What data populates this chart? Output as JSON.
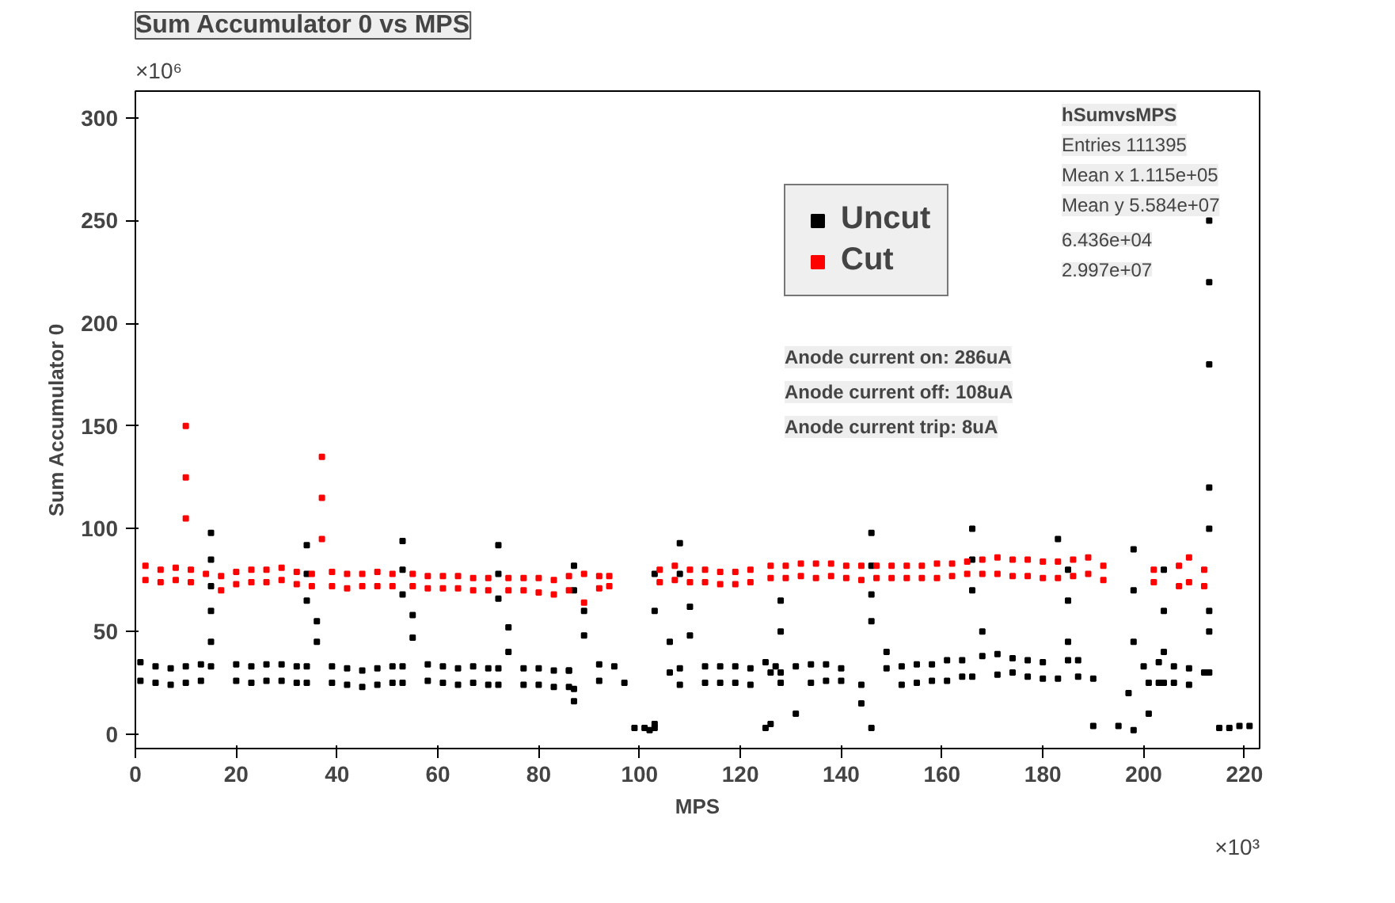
{
  "chart_data": {
    "type": "scatter",
    "title": "Sum Accumulator 0 vs MPS",
    "xlabel": "MPS",
    "ylabel": "Sum Accumulator 0",
    "annotations": [
      "×10⁶",
      "×10³",
      "hSumvsMPS",
      "Entries 111395",
      "Mean x 1.115e+05",
      "Mean y 5.584e+07",
      "6.436e+04",
      "2.997e+07",
      "Anode current on: 286uA",
      "Anode current off: 108uA",
      "Anode current trip: 8uA"
    ],
    "xlim": [
      0,
      223
    ],
    "ylim": [
      -7,
      313
    ],
    "xticks": [
      0,
      20,
      40,
      60,
      80,
      100,
      120,
      140,
      160,
      180,
      200,
      220
    ],
    "yticks": [
      0,
      50,
      100,
      150,
      200,
      250,
      300
    ],
    "grid": false,
    "legend": "top right",
    "marker": "square",
    "series": [
      {
        "name": "Uncut",
        "color": "#000000",
        "x": [
          1,
          1,
          4,
          4,
          7,
          7,
          10,
          10,
          13,
          13,
          15,
          15,
          15,
          15,
          15,
          15,
          20,
          20,
          23,
          23,
          26,
          26,
          29,
          29,
          32,
          32,
          34,
          34,
          34,
          34,
          34,
          36,
          36,
          39,
          39,
          42,
          42,
          45,
          45,
          48,
          48,
          51,
          51,
          53,
          53,
          53,
          53,
          53,
          55,
          55,
          58,
          58,
          61,
          61,
          64,
          64,
          67,
          67,
          70,
          70,
          72,
          72,
          72,
          72,
          72,
          74,
          74,
          77,
          77,
          80,
          80,
          83,
          83,
          86,
          86,
          86,
          87,
          87,
          87,
          87,
          89,
          89,
          92,
          92,
          95,
          97,
          99,
          101,
          102,
          103,
          103,
          103,
          103,
          106,
          106,
          108,
          108,
          108,
          108,
          110,
          110,
          113,
          113,
          116,
          116,
          119,
          119,
          122,
          122,
          125,
          125,
          126,
          126,
          127,
          128,
          128,
          128,
          128,
          131,
          131,
          134,
          134,
          137,
          137,
          140,
          140,
          144,
          144,
          146,
          146,
          146,
          146,
          146,
          149,
          149,
          152,
          152,
          155,
          155,
          158,
          158,
          161,
          161,
          164,
          164,
          166,
          166,
          166,
          166,
          168,
          168,
          171,
          171,
          174,
          174,
          177,
          177,
          180,
          180,
          183,
          183,
          185,
          185,
          185,
          185,
          187,
          187,
          190,
          190,
          195,
          197,
          198,
          198,
          198,
          198,
          200,
          201,
          201,
          203,
          203,
          204,
          204,
          204,
          204,
          206,
          206,
          209,
          209,
          212,
          213,
          213,
          213,
          213,
          213,
          213,
          213,
          213,
          215,
          217,
          219,
          221
        ],
        "values": [
          35,
          26,
          33,
          25,
          32,
          24,
          33,
          25,
          34,
          26,
          98,
          85,
          72,
          60,
          45,
          33,
          34,
          26,
          33,
          25,
          34,
          26,
          34,
          26,
          33,
          25,
          33,
          25,
          92,
          78,
          65,
          55,
          45,
          33,
          25,
          32,
          24,
          31,
          23,
          32,
          24,
          33,
          25,
          33,
          25,
          94,
          80,
          68,
          58,
          47,
          34,
          26,
          33,
          25,
          32,
          24,
          33,
          25,
          32,
          24,
          32,
          24,
          92,
          78,
          66,
          52,
          40,
          32,
          24,
          32,
          24,
          31,
          23,
          31,
          23,
          31,
          22,
          16,
          82,
          70,
          60,
          48,
          34,
          26,
          33,
          25,
          3,
          3,
          2,
          3,
          5,
          78,
          60,
          45,
          30,
          32,
          24,
          93,
          78,
          62,
          48,
          33,
          25,
          33,
          25,
          33,
          25,
          32,
          24,
          35,
          3,
          30,
          5,
          33,
          25,
          65,
          50,
          30,
          10,
          33,
          25,
          34,
          26,
          34,
          26,
          32,
          24,
          15,
          3,
          98,
          82,
          68,
          55,
          40,
          32,
          24,
          33,
          25,
          34,
          26,
          34,
          26,
          36,
          28,
          36,
          28,
          100,
          85,
          70,
          50,
          38,
          29,
          39,
          30,
          37,
          28,
          36,
          27,
          35,
          27,
          95,
          80,
          65,
          45,
          36,
          28,
          36,
          27,
          4,
          4,
          20,
          90,
          70,
          45,
          2,
          33,
          25,
          10,
          35,
          25,
          80,
          60,
          40,
          25,
          33,
          25,
          32,
          24,
          30,
          60,
          120,
          180,
          220,
          250,
          100,
          50,
          30,
          3,
          3,
          4,
          4
        ]
      },
      {
        "name": "Cut",
        "color": "#ff0000",
        "x": [
          2,
          2,
          5,
          5,
          8,
          8,
          10,
          10,
          10,
          11,
          11,
          14,
          17,
          17,
          20,
          20,
          23,
          23,
          26,
          26,
          29,
          29,
          32,
          32,
          35,
          35,
          37,
          37,
          37,
          39,
          39,
          42,
          42,
          45,
          45,
          48,
          48,
          51,
          51,
          55,
          55,
          58,
          58,
          61,
          61,
          64,
          64,
          67,
          67,
          70,
          70,
          74,
          74,
          77,
          77,
          80,
          80,
          83,
          83,
          86,
          86,
          89,
          89,
          92,
          92,
          94,
          94,
          104,
          104,
          107,
          107,
          110,
          110,
          113,
          113,
          116,
          116,
          119,
          119,
          122,
          122,
          126,
          126,
          129,
          129,
          132,
          132,
          135,
          135,
          138,
          138,
          141,
          141,
          144,
          144,
          147,
          147,
          150,
          150,
          153,
          153,
          156,
          156,
          159,
          159,
          162,
          162,
          165,
          165,
          168,
          168,
          171,
          171,
          174,
          174,
          177,
          177,
          180,
          180,
          183,
          183,
          186,
          186,
          189,
          189,
          192,
          192,
          202,
          202,
          207,
          207,
          209,
          209,
          212,
          212
        ],
        "values": [
          82,
          75,
          80,
          74,
          81,
          75,
          150,
          125,
          105,
          80,
          74,
          78,
          77,
          70,
          79,
          73,
          80,
          74,
          80,
          74,
          81,
          75,
          79,
          73,
          78,
          72,
          135,
          115,
          95,
          79,
          72,
          78,
          71,
          78,
          72,
          79,
          72,
          78,
          72,
          78,
          72,
          77,
          71,
          77,
          71,
          77,
          71,
          76,
          70,
          76,
          70,
          76,
          70,
          76,
          70,
          76,
          69,
          75,
          68,
          77,
          70,
          78,
          64,
          77,
          71,
          77,
          72,
          80,
          74,
          82,
          75,
          80,
          74,
          80,
          74,
          79,
          73,
          79,
          73,
          80,
          74,
          82,
          76,
          82,
          76,
          83,
          77,
          83,
          76,
          83,
          77,
          82,
          76,
          82,
          75,
          82,
          76,
          82,
          76,
          82,
          76,
          82,
          76,
          83,
          76,
          83,
          77,
          84,
          78,
          85,
          78,
          86,
          78,
          85,
          77,
          85,
          77,
          84,
          76,
          84,
          76,
          85,
          77,
          86,
          78,
          82,
          75,
          80,
          74,
          82,
          72,
          86,
          74,
          80,
          72
        ]
      }
    ]
  }
}
